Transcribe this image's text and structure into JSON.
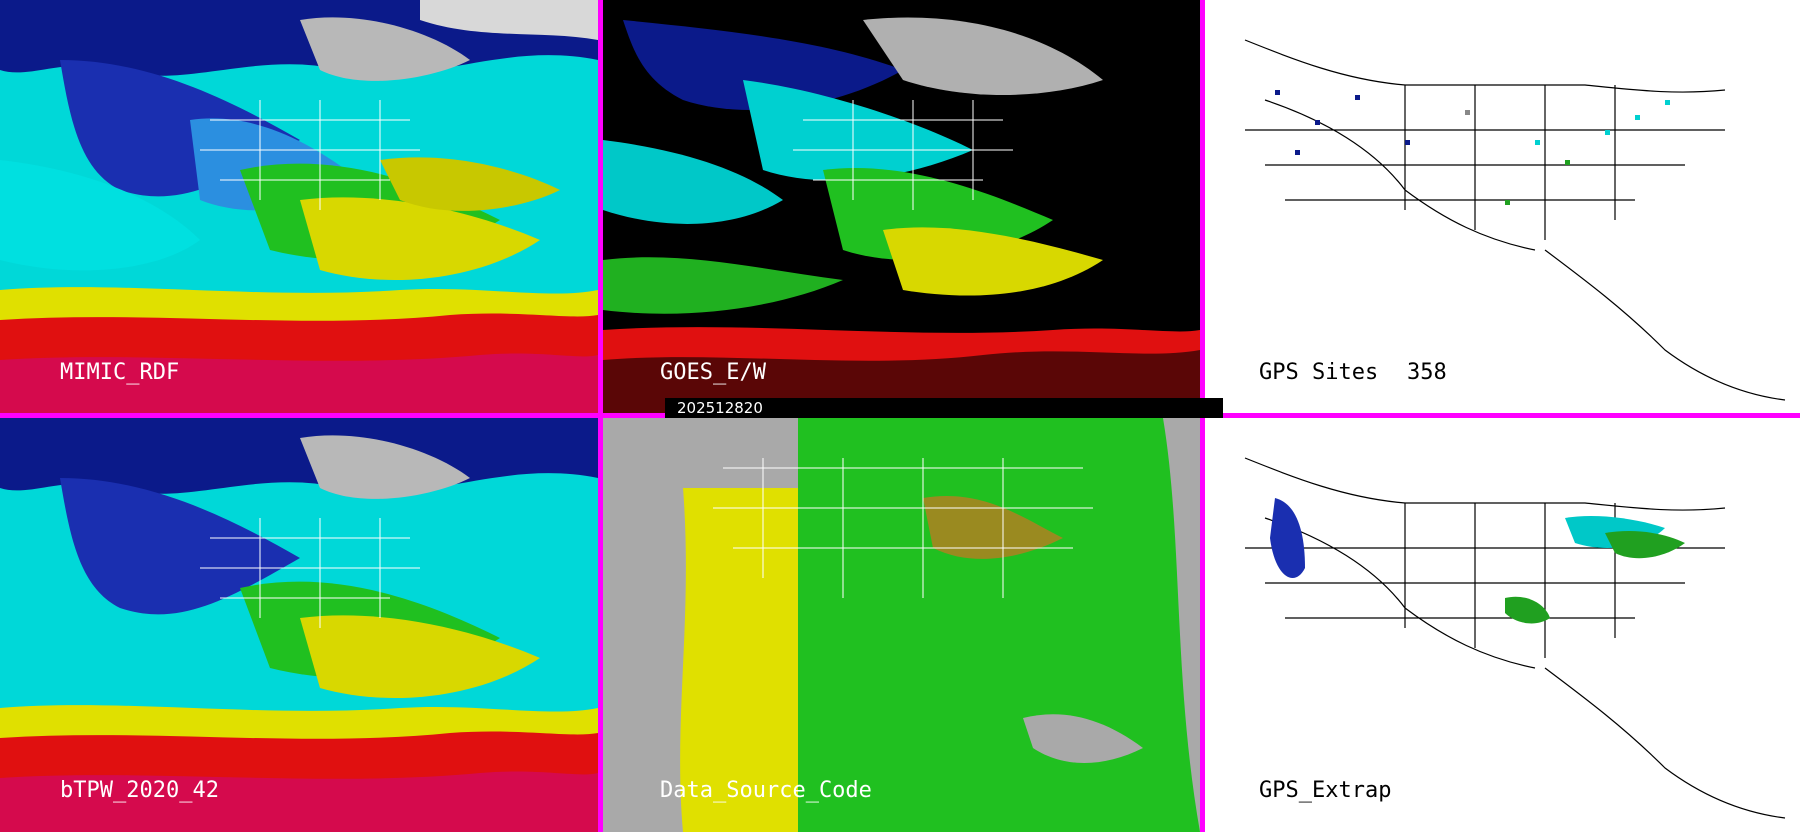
{
  "panels": [
    {
      "id": "p1",
      "label": "MIMIC_RDF",
      "extra": ""
    },
    {
      "id": "p2",
      "label": "GOES_E/W",
      "extra": ""
    },
    {
      "id": "p3",
      "label": "GPS Sites",
      "extra": "358"
    },
    {
      "id": "p4",
      "label": "bTPW_2020_42",
      "extra": ""
    },
    {
      "id": "p5",
      "label": "Data_Source_Code",
      "extra": ""
    },
    {
      "id": "p6",
      "label": "GPS_Extrap",
      "extra": ""
    }
  ],
  "timestamp": "202512820",
  "colors": {
    "divider": "#ff00ff",
    "black": "#000000",
    "white": "#ffffff",
    "gray": "#a9a9a9"
  }
}
